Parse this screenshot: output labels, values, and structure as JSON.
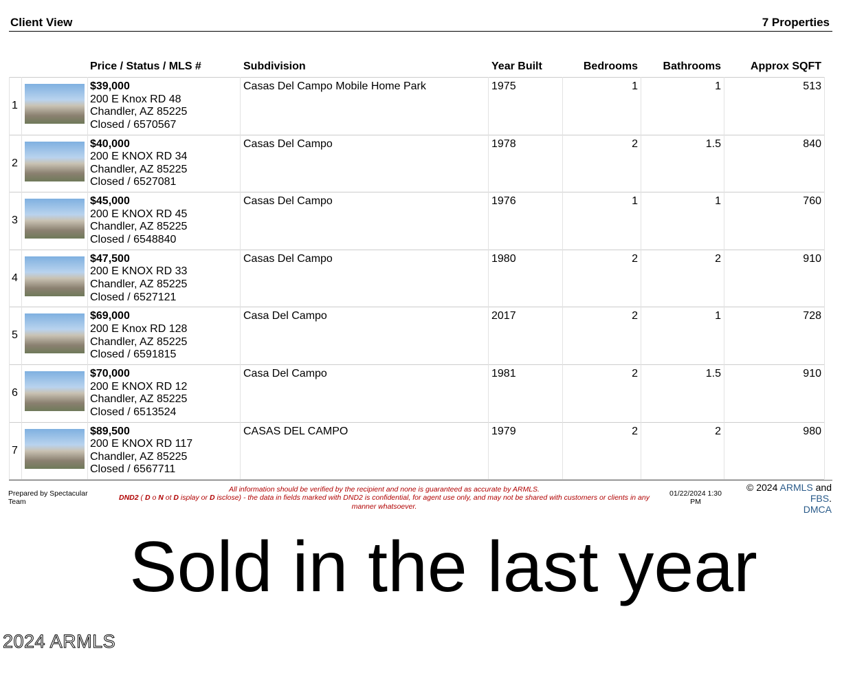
{
  "header": {
    "title": "Client View",
    "count": "7 Properties"
  },
  "table": {
    "columns": [
      "Price / Status / MLS #",
      "Subdivision",
      "Year Built",
      "Bedrooms",
      "Bathrooms",
      "Approx SQFT"
    ],
    "rows": [
      {
        "index": 1,
        "price": "$39,000",
        "address": "200 E Knox RD 48",
        "city": "Chandler, AZ 85225",
        "status": "Closed / 6570567",
        "subdivision": "Casas Del Campo Mobile Home Park",
        "year_built": 1975,
        "bedrooms": 1,
        "bathrooms": 1,
        "sqft": 513
      },
      {
        "index": 2,
        "price": "$40,000",
        "address": "200 E KNOX RD 34",
        "city": "Chandler, AZ 85225",
        "status": "Closed / 6527081",
        "subdivision": "Casas Del Campo",
        "year_built": 1978,
        "bedrooms": 2,
        "bathrooms": 1.5,
        "sqft": 840
      },
      {
        "index": 3,
        "price": "$45,000",
        "address": "200 E KNOX RD 45",
        "city": "Chandler, AZ 85225",
        "status": "Closed / 6548840",
        "subdivision": "Casas Del Campo",
        "year_built": 1976,
        "bedrooms": 1,
        "bathrooms": 1,
        "sqft": 760
      },
      {
        "index": 4,
        "price": "$47,500",
        "address": "200 E KNOX RD 33",
        "city": "Chandler, AZ 85225",
        "status": "Closed / 6527121",
        "subdivision": "Casas Del Campo",
        "year_built": 1980,
        "bedrooms": 2,
        "bathrooms": 2,
        "sqft": 910
      },
      {
        "index": 5,
        "price": "$69,000",
        "address": "200 E Knox RD 128",
        "city": "Chandler, AZ 85225",
        "status": "Closed / 6591815",
        "subdivision": "Casa Del Campo",
        "year_built": 2017,
        "bedrooms": 2,
        "bathrooms": 1,
        "sqft": 728
      },
      {
        "index": 6,
        "price": "$70,000",
        "address": "200 E KNOX RD 12",
        "city": "Chandler, AZ 85225",
        "status": "Closed / 6513524",
        "subdivision": "Casa Del Campo",
        "year_built": 1981,
        "bedrooms": 2,
        "bathrooms": 1.5,
        "sqft": 910
      },
      {
        "index": 7,
        "price": "$89,500",
        "address": "200 E KNOX RD 117",
        "city": "Chandler, AZ 85225",
        "status": "Closed / 6567711",
        "subdivision": "CASAS DEL CAMPO",
        "year_built": 1979,
        "bedrooms": 2,
        "bathrooms": 2,
        "sqft": 980
      }
    ]
  },
  "footer": {
    "prepared_by": "Prepared by Spectacular Team",
    "notice": "All information should be verified by the recipient and none is guaranteed as accurate by ARMLS.",
    "dnd2_parts": [
      "DND2",
      " ( ",
      "D",
      " o ",
      "N",
      " ot ",
      "D",
      " isplay or ",
      "D",
      " isclose) - the data in fields marked with DND2 is confidential, for agent use only, and may not be shared with customers or clients in any manner whatsoever."
    ],
    "timestamp": "01/22/2024 1:30 PM",
    "copyright": [
      "© 2024",
      "ARMLS",
      "and",
      "FBS",
      ".",
      "DMCA"
    ]
  },
  "banner": "Sold in the last year",
  "watermark": "2024 ARMLS"
}
